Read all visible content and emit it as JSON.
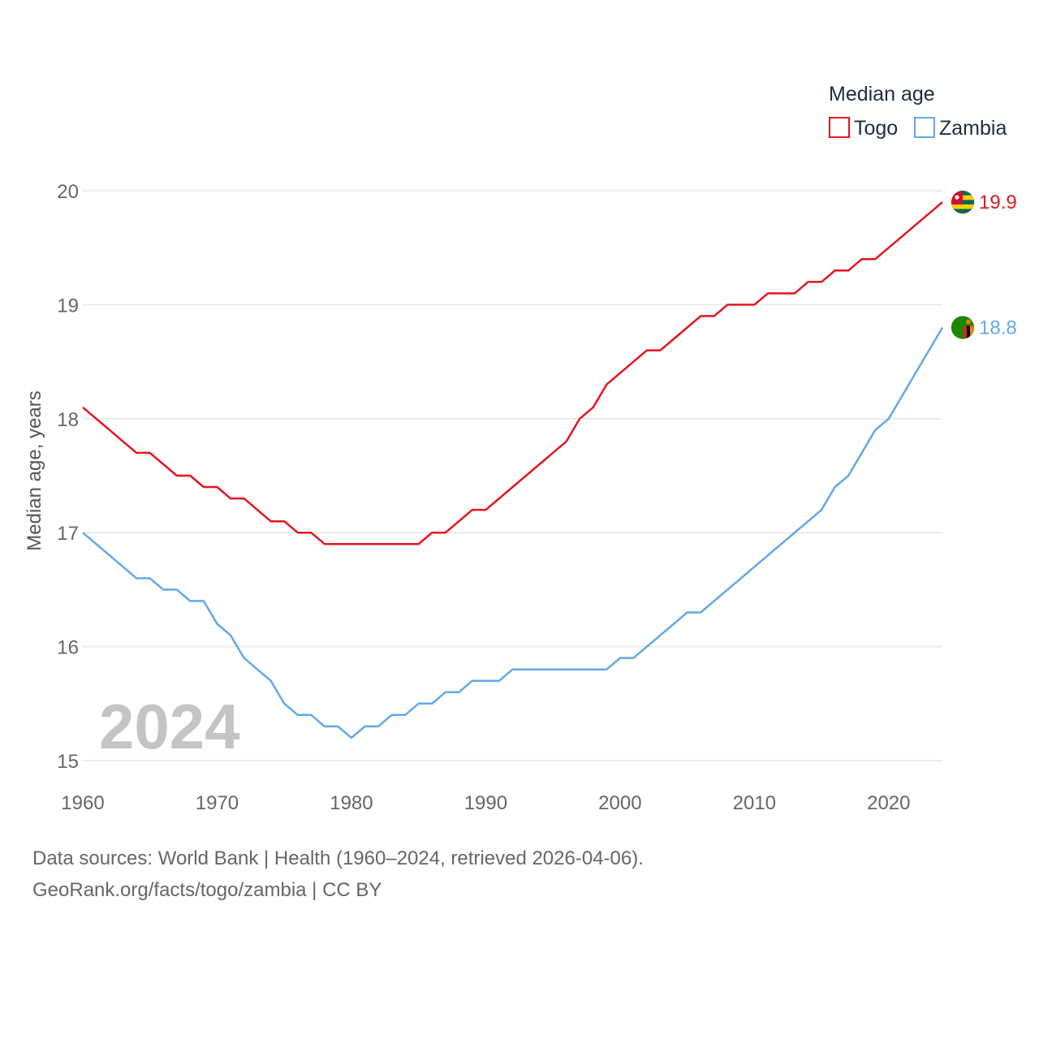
{
  "legend": {
    "title": "Median age"
  },
  "watermark_year": "2024",
  "footer": {
    "line1": "Data sources: World Bank | Health (1960–2024, retrieved 2026-04-06).",
    "line2": "GeoRank.org/facts/togo/zambia | CC BY"
  },
  "colors": {
    "togo": "#e8141e",
    "zambia": "#62a8e8",
    "grid": "#e6e6e6"
  },
  "chart_data": {
    "type": "line",
    "title": "Median age",
    "xlabel": "",
    "ylabel": "Median age, years",
    "xlim": [
      1960,
      2024
    ],
    "ylim": [
      15,
      20
    ],
    "x_ticks": [
      1960,
      1970,
      1980,
      1990,
      2000,
      2010,
      2020
    ],
    "y_ticks": [
      15,
      16,
      17,
      18,
      19,
      20
    ],
    "grid": true,
    "legend_position": "top-right",
    "x": [
      1960,
      1961,
      1962,
      1963,
      1964,
      1965,
      1966,
      1967,
      1968,
      1969,
      1970,
      1971,
      1972,
      1973,
      1974,
      1975,
      1976,
      1977,
      1978,
      1979,
      1980,
      1981,
      1982,
      1983,
      1984,
      1985,
      1986,
      1987,
      1988,
      1989,
      1990,
      1991,
      1992,
      1993,
      1994,
      1995,
      1996,
      1997,
      1998,
      1999,
      2000,
      2001,
      2002,
      2003,
      2004,
      2005,
      2006,
      2007,
      2008,
      2009,
      2010,
      2011,
      2012,
      2013,
      2014,
      2015,
      2016,
      2017,
      2018,
      2019,
      2020,
      2021,
      2022,
      2023,
      2024
    ],
    "series": [
      {
        "name": "Togo",
        "end_label": "19.9",
        "flag_icon": "togo-flag-icon",
        "values": [
          18.1,
          18.0,
          17.9,
          17.8,
          17.7,
          17.7,
          17.6,
          17.5,
          17.5,
          17.4,
          17.4,
          17.3,
          17.3,
          17.2,
          17.1,
          17.1,
          17.0,
          17.0,
          16.9,
          16.9,
          16.9,
          16.9,
          16.9,
          16.9,
          16.9,
          16.9,
          17.0,
          17.0,
          17.1,
          17.2,
          17.2,
          17.3,
          17.4,
          17.5,
          17.6,
          17.7,
          17.8,
          18.0,
          18.1,
          18.3,
          18.4,
          18.5,
          18.6,
          18.6,
          18.7,
          18.8,
          18.9,
          18.9,
          19.0,
          19.0,
          19.0,
          19.1,
          19.1,
          19.1,
          19.2,
          19.2,
          19.3,
          19.3,
          19.4,
          19.4,
          19.5,
          19.6,
          19.7,
          19.8,
          19.9
        ]
      },
      {
        "name": "Zambia",
        "end_label": "18.8",
        "flag_icon": "zambia-flag-icon",
        "values": [
          17.0,
          16.9,
          16.8,
          16.7,
          16.6,
          16.6,
          16.5,
          16.5,
          16.4,
          16.4,
          16.2,
          16.1,
          15.9,
          15.8,
          15.7,
          15.5,
          15.4,
          15.4,
          15.3,
          15.3,
          15.2,
          15.3,
          15.3,
          15.4,
          15.4,
          15.5,
          15.5,
          15.6,
          15.6,
          15.7,
          15.7,
          15.7,
          15.8,
          15.8,
          15.8,
          15.8,
          15.8,
          15.8,
          15.8,
          15.8,
          15.9,
          15.9,
          16.0,
          16.1,
          16.2,
          16.3,
          16.3,
          16.4,
          16.5,
          16.6,
          16.7,
          16.8,
          16.9,
          17.0,
          17.1,
          17.2,
          17.4,
          17.5,
          17.7,
          17.9,
          18.0,
          18.2,
          18.4,
          18.6,
          18.8
        ]
      }
    ]
  }
}
